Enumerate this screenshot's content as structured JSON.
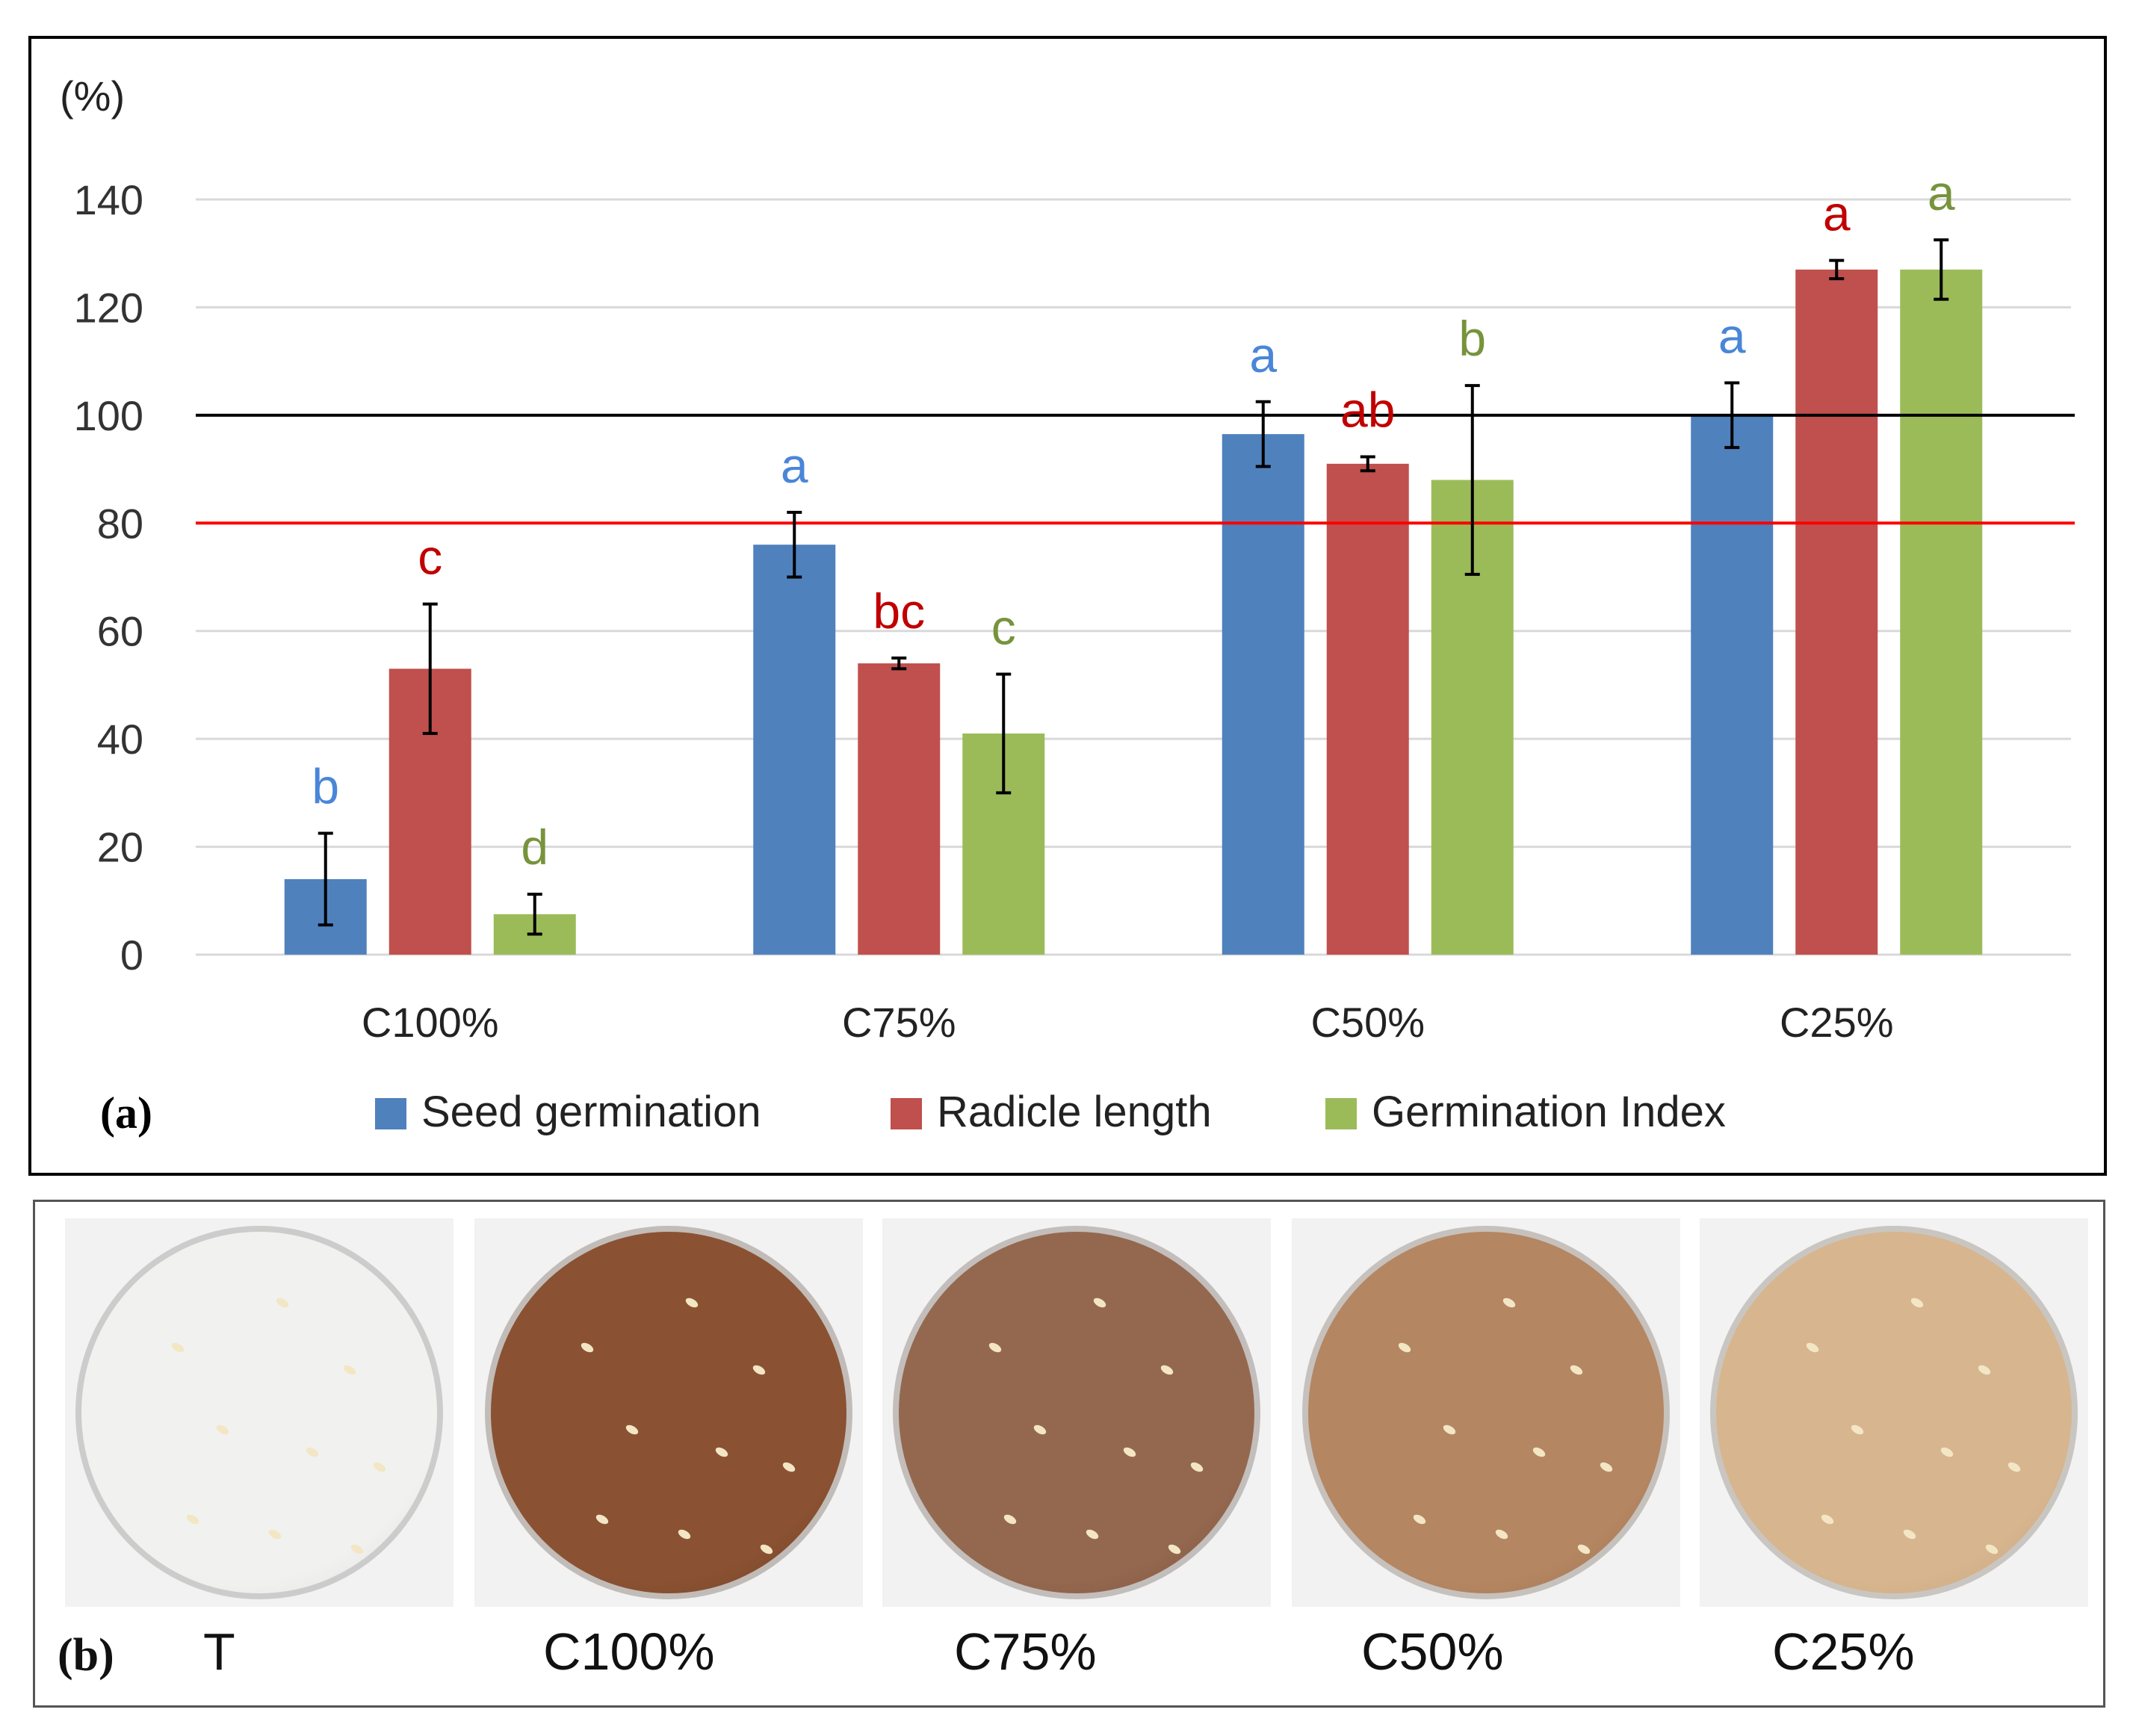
{
  "panel_a": {
    "tag": "(a)",
    "unit_label": "(%)"
  },
  "chart_data": {
    "type": "bar",
    "title": "",
    "xlabel": "",
    "ylabel": "(%)",
    "ylim": [
      0,
      140
    ],
    "yticks": [
      0,
      20,
      40,
      60,
      80,
      100,
      120,
      140
    ],
    "gridlines": true,
    "legend_position": "bottom",
    "categories": [
      "C100%",
      "C75%",
      "C50%",
      "C25%"
    ],
    "series": [
      {
        "name": "Seed germination",
        "color": "#4F81BD",
        "letter_color": "#4A86D8",
        "values": [
          14,
          76,
          96.5,
          100
        ],
        "errors": [
          8.5,
          6,
          6,
          6
        ],
        "letters": [
          "b",
          "a",
          "a",
          "a"
        ]
      },
      {
        "name": "Radicle length",
        "color": "#C0504D",
        "letter_color": "#C00000",
        "values": [
          53,
          54,
          91,
          127
        ],
        "errors": [
          12,
          1,
          1.3,
          1.7
        ],
        "letters": [
          "c",
          "bc",
          "ab",
          "a"
        ]
      },
      {
        "name": "Germination Index",
        "color": "#9BBB59",
        "letter_color": "#77933C",
        "values": [
          7.5,
          41,
          88,
          127
        ],
        "errors": [
          3.7,
          11,
          17.5,
          5.5
        ],
        "letters": [
          "d",
          "c",
          "b",
          "a"
        ]
      }
    ],
    "reference_lines": [
      {
        "value": 100,
        "color": "#000000"
      },
      {
        "value": 80,
        "color": "#FF0000"
      }
    ]
  },
  "panel_b": {
    "tag": "(b)",
    "photos": [
      {
        "label": "T",
        "paper": "#f1f1ef",
        "ring": "#d9d9d6"
      },
      {
        "label": "C100%",
        "paper": "#8a5232",
        "ring": "#6d3b22"
      },
      {
        "label": "C75%",
        "paper": "#94684f",
        "ring": "#7a4f38"
      },
      {
        "label": "C50%",
        "paper": "#b48662",
        "ring": "#9e6e4c"
      },
      {
        "label": "C25%",
        "paper": "#d7b68f",
        "ring": "#c29c74"
      }
    ]
  }
}
